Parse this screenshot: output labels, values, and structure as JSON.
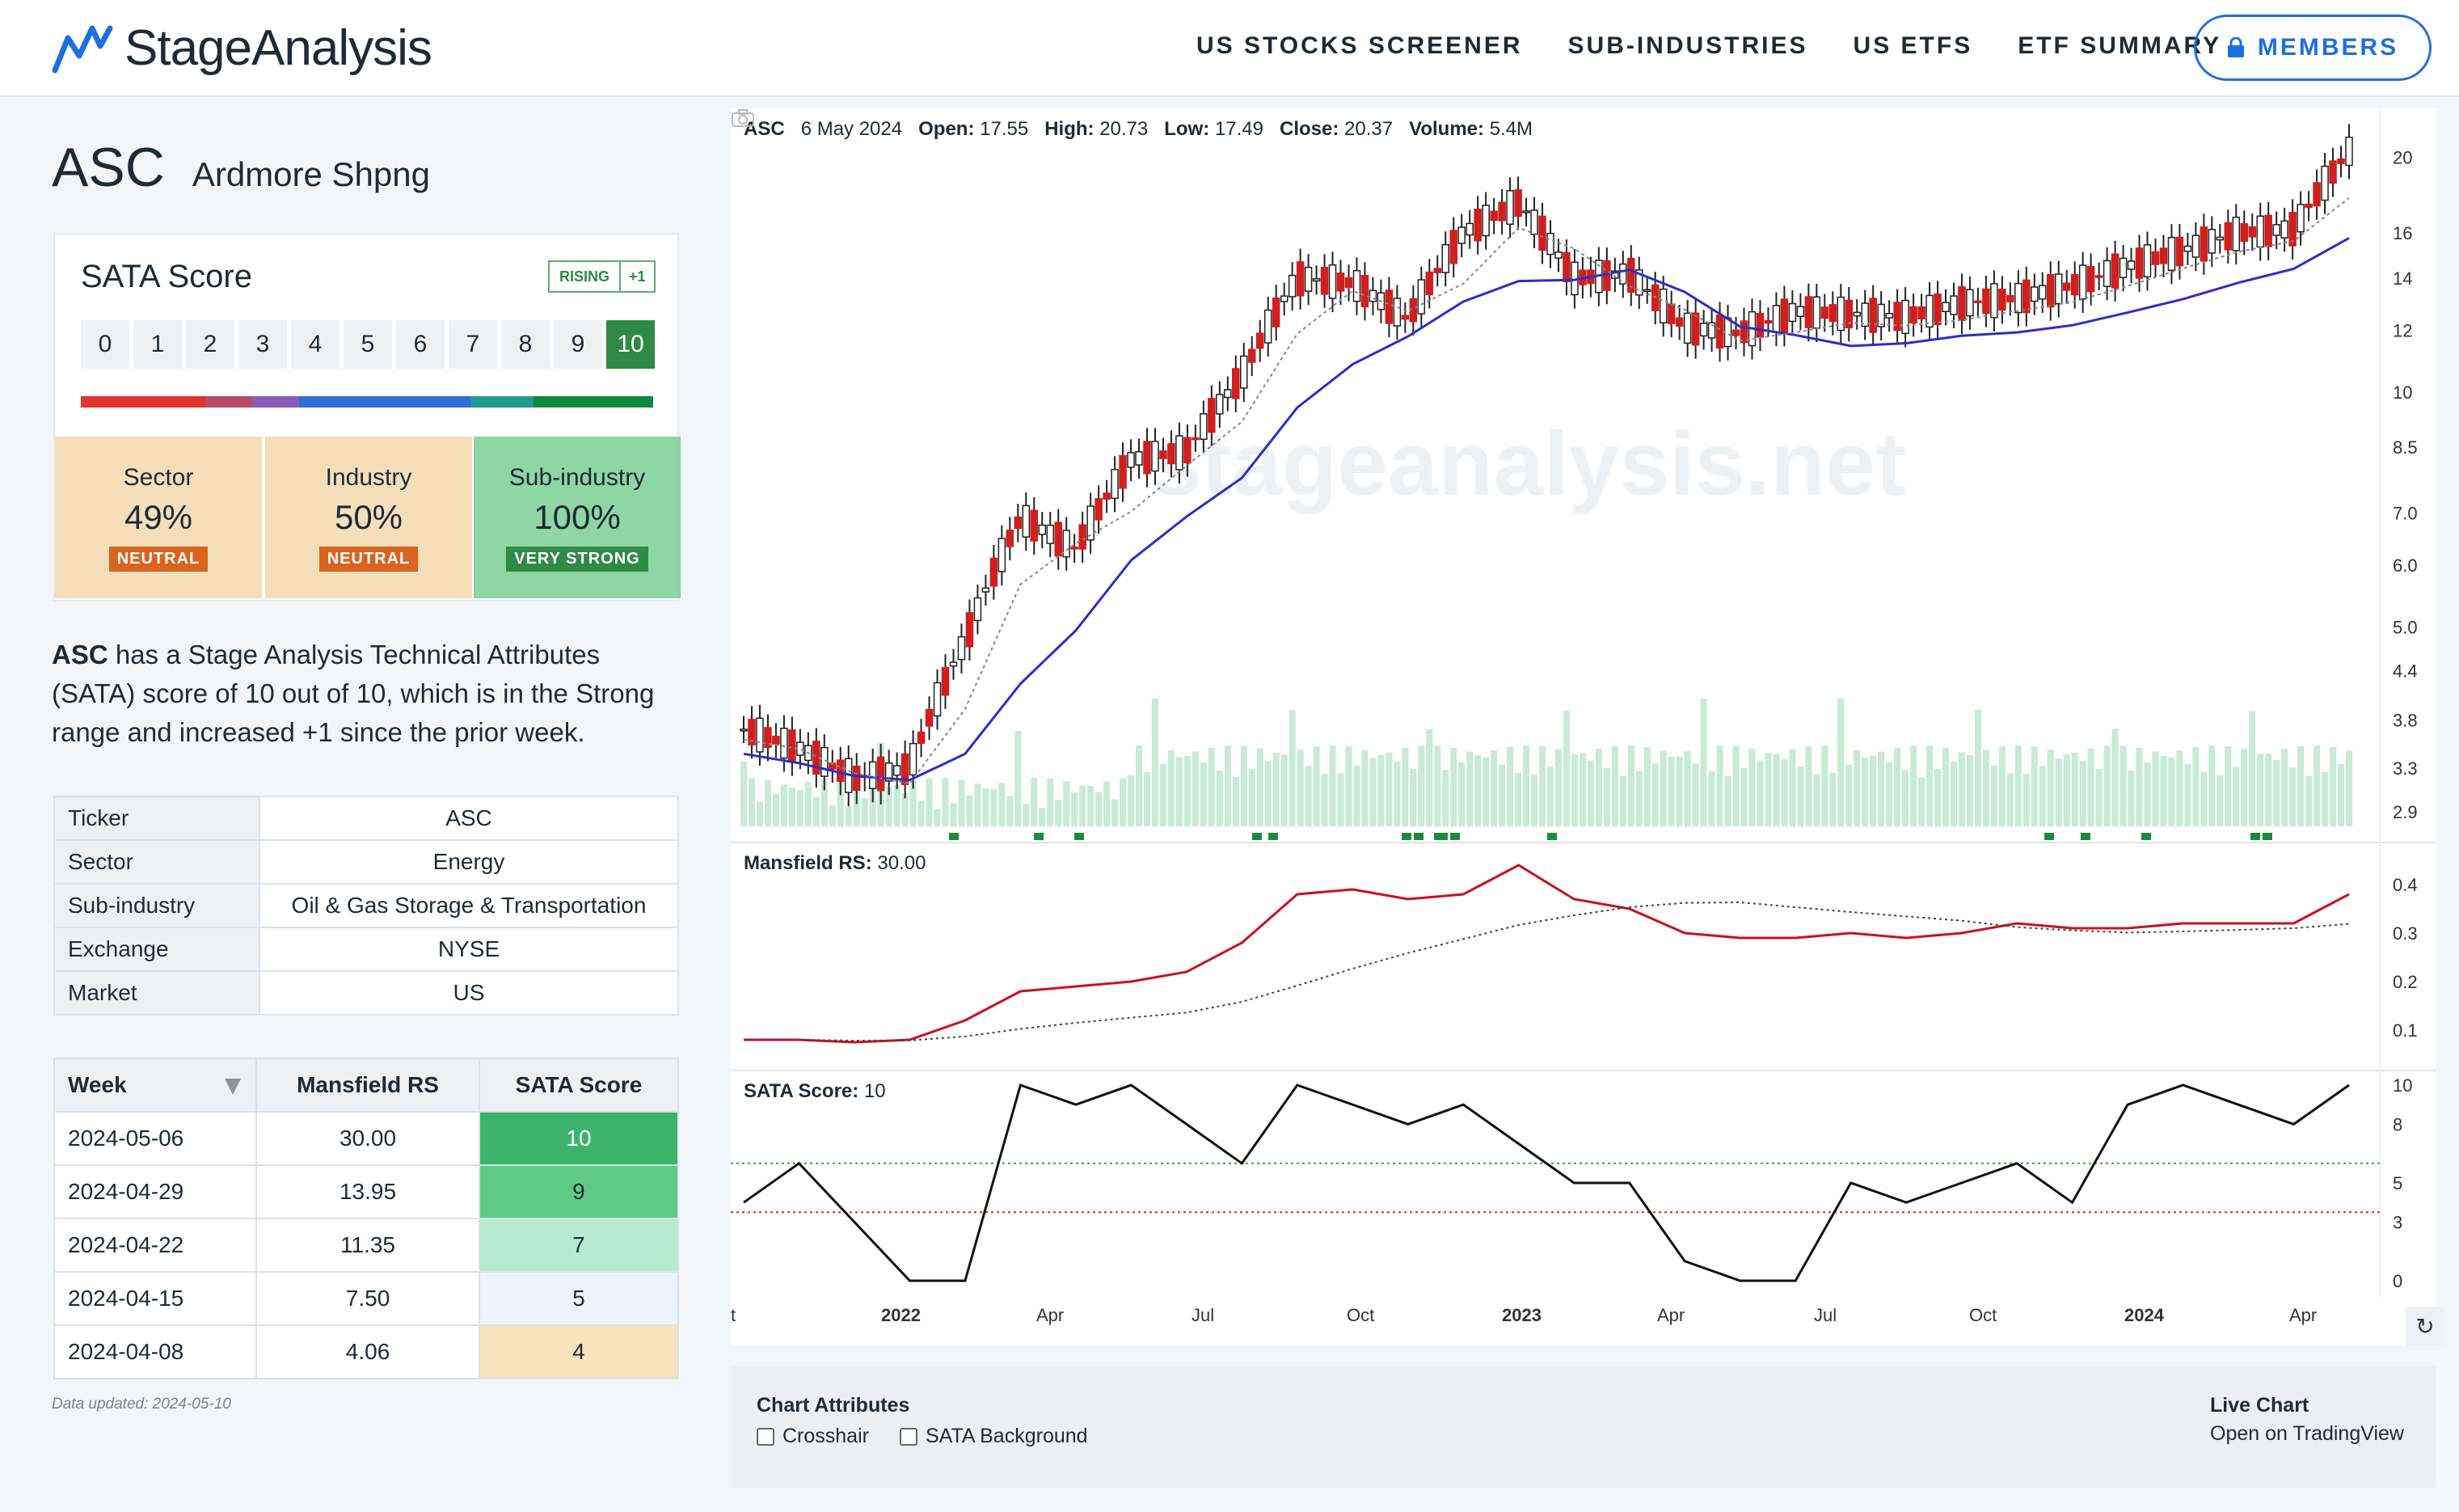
{
  "header": {
    "brand": "StageAnalysis",
    "nav": [
      "US STOCKS SCREENER",
      "SUB-INDUSTRIES",
      "US ETFS",
      "ETF SUMMARY"
    ],
    "members_label": "MEMBERS"
  },
  "stock": {
    "symbol": "ASC",
    "name": "Ardmore Shpng"
  },
  "sata": {
    "label": "SATA Score",
    "trend_label": "RISING",
    "trend_delta": "+1",
    "scale": [
      "0",
      "1",
      "2",
      "3",
      "4",
      "5",
      "6",
      "7",
      "8",
      "9",
      "10"
    ],
    "current": "10",
    "bar_colors": [
      "#e2342d",
      "#b84a6a",
      "#8a5cb8",
      "#2f6fd6",
      "#1d9c8a",
      "#0a8a3a"
    ]
  },
  "strength": [
    {
      "title": "Sector",
      "value": "49%",
      "badge": "NEUTRAL",
      "bg": "#f5dfba",
      "badge_bg": "#d9631f"
    },
    {
      "title": "Industry",
      "value": "50%",
      "badge": "NEUTRAL",
      "bg": "#f5dfba",
      "badge_bg": "#d9631f"
    },
    {
      "title": "Sub-industry",
      "value": "100%",
      "badge": "VERY STRONG",
      "bg": "#8ed6a3",
      "badge_bg": "#2f8a45"
    }
  ],
  "description": {
    "symbol": "ASC",
    "text": " has a Stage Analysis Technical Attributes (SATA) score of 10 out of 10, which is in the Strong range and increased +1 since the prior week."
  },
  "info": [
    {
      "key": "Ticker",
      "value": "ASC"
    },
    {
      "key": "Sector",
      "value": "Energy"
    },
    {
      "key": "Sub-industry",
      "value": "Oil & Gas Storage & Transportation"
    },
    {
      "key": "Exchange",
      "value": "NYSE"
    },
    {
      "key": "Market",
      "value": "US"
    }
  ],
  "weeks": {
    "headers": [
      "Week",
      "Mansfield RS",
      "SATA Score"
    ],
    "rows": [
      {
        "week": "2024-05-06",
        "rs": "30.00",
        "score": "10",
        "color": "#3cb36a"
      },
      {
        "week": "2024-04-29",
        "rs": "13.95",
        "score": "9",
        "color": "#5fca86"
      },
      {
        "week": "2024-04-22",
        "rs": "11.35",
        "score": "7",
        "color": "#b8ead0"
      },
      {
        "week": "2024-04-15",
        "rs": "7.50",
        "score": "5",
        "color": "#e9f5fb"
      },
      {
        "week": "2024-04-08",
        "rs": "4.06",
        "score": "4",
        "color": "#f6e2bd"
      }
    ]
  },
  "updated": "Data updated: 2024-05-10",
  "chart": {
    "ohlc": {
      "symbol": "ASC",
      "date": "6 May 2024",
      "open_label": "Open:",
      "open": "17.55",
      "high_label": "High:",
      "high": "20.73",
      "low_label": "Low:",
      "low": "17.49",
      "close_label": "Close:",
      "close": "20.37",
      "volume_label": "Volume:",
      "volume": "5.4M"
    },
    "watermark": "stageanalysis.net",
    "mansfield_label": "Mansfield RS:",
    "mansfield_value": "30.00",
    "sata_label": "SATA Score:",
    "sata_value": "10",
    "price_ticks": [
      "20",
      "16",
      "14",
      "12",
      "10",
      "8.5",
      "7.0",
      "6.0",
      "5.0",
      "4.4",
      "3.8",
      "3.3",
      "2.9"
    ],
    "rs_ticks": [
      "0.4",
      "0.3",
      "0.2",
      "0.1"
    ],
    "sata_ticks": [
      "10",
      "8",
      "5",
      "3",
      "0"
    ],
    "x_ticks": [
      "t",
      "2022",
      "Apr",
      "Jul",
      "Oct",
      "2023",
      "Apr",
      "Jul",
      "Oct",
      "2024",
      "Apr"
    ],
    "refresh_icon": "refresh-icon"
  },
  "chart_data": [
    {
      "type": "line",
      "title": "",
      "ylabel": "",
      "scale": "log",
      "ylim": [
        2.7,
        21
      ],
      "x": [
        "2021-12",
        "2022-01",
        "2022-02",
        "2022-03",
        "2022-04",
        "2022-05",
        "2022-06",
        "2022-07",
        "2022-08",
        "2022-09",
        "2022-10",
        "2022-11",
        "2022-12",
        "2023-01",
        "2023-02",
        "2023-03",
        "2023-04",
        "2023-05",
        "2023-06",
        "2023-07",
        "2023-08",
        "2023-09",
        "2023-10",
        "2023-11",
        "2023-12",
        "2024-01",
        "2024-02",
        "2024-03",
        "2024-04",
        "2024-05"
      ],
      "series": [
        {
          "name": "",
          "values": [
            3.7,
            3.5,
            3.2,
            3.3,
            4.8,
            6.9,
            6.3,
            8.2,
            8.4,
            10.5,
            14.0,
            13.8,
            12.4,
            16.0,
            17.5,
            14.0,
            14.2,
            12.1,
            11.9,
            12.7,
            12.6,
            12.5,
            13.0,
            13.2,
            13.7,
            14.5,
            15.2,
            16.0,
            16.2,
            20.37
          ]
        }
      ]
    },
    {
      "type": "line",
      "title": "",
      "ylim": [
        0.05,
        0.45
      ],
      "series": [
        {
          "name": "Mansfield RS",
          "values": [
            0.08,
            0.08,
            0.075,
            0.08,
            0.12,
            0.18,
            0.19,
            0.2,
            0.22,
            0.28,
            0.38,
            0.39,
            0.37,
            0.38,
            0.44,
            0.37,
            0.35,
            0.3,
            0.29,
            0.29,
            0.3,
            0.29,
            0.3,
            0.32,
            0.31,
            0.31,
            0.32,
            0.32,
            0.32,
            0.38
          ]
        }
      ]
    },
    {
      "type": "line",
      "title": "",
      "ylim": [
        0,
        10
      ],
      "series": [
        {
          "name": "SATA Score",
          "values": [
            4,
            6,
            3,
            0,
            0,
            10,
            9,
            10,
            8,
            6,
            10,
            9,
            8,
            9,
            7,
            5,
            5,
            1,
            0,
            0,
            5,
            4,
            5,
            6,
            4,
            9,
            10,
            9,
            8,
            10
          ]
        }
      ]
    }
  ],
  "attributes": {
    "title": "Chart Attributes",
    "options": [
      "Crosshair",
      "SATA Background"
    ],
    "live_title": "Live Chart",
    "live_link": "Open on TradingView"
  }
}
